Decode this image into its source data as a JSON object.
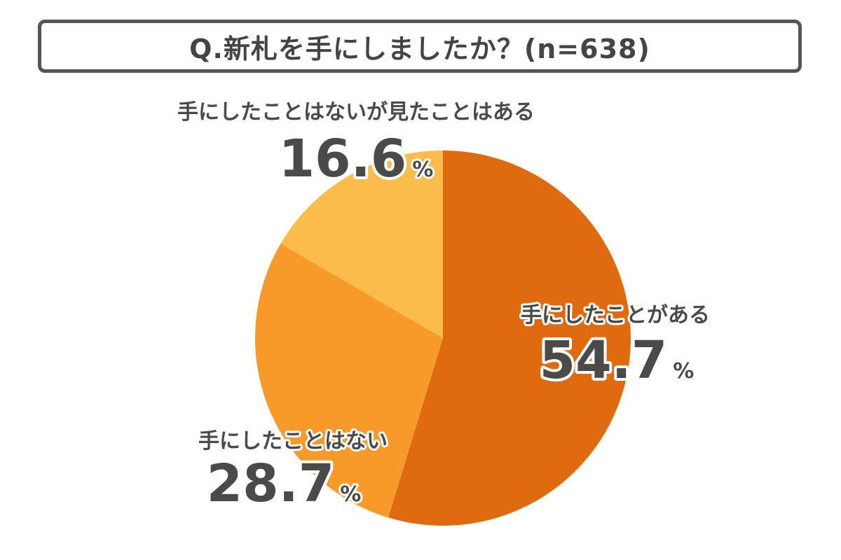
{
  "title": "Q.新札を手にしましたか？(n=638)",
  "chart_data": {
    "type": "pie",
    "unit": "%",
    "start_angle_deg": 0,
    "direction": "clockwise",
    "slices": [
      {
        "label": "手にしたことがある",
        "value": 54.7,
        "value_text": "54.7",
        "color": "#E06A10"
      },
      {
        "label": "手にしたことはない",
        "value": 28.7,
        "value_text": "28.7",
        "color": "#F79A2A"
      },
      {
        "label": "手にしたことはないが見たことはある",
        "value": 16.6,
        "value_text": "16.6",
        "color": "#FABD4A"
      }
    ]
  }
}
